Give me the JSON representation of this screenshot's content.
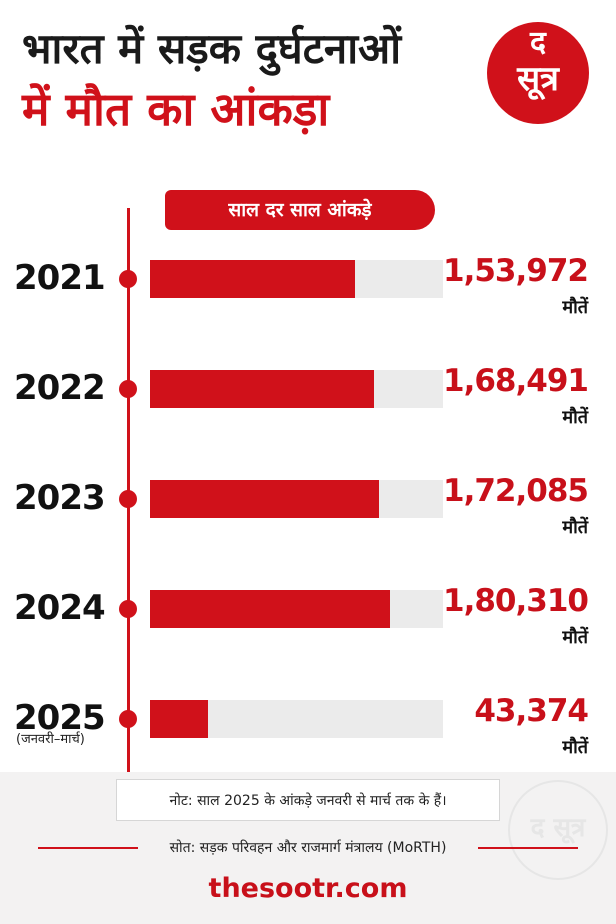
{
  "header": {
    "title_line1": "भारत में सड़क दुर्घटनाओं",
    "title_line2": "में मौत का आंकड़ा",
    "logo_line1": "द",
    "logo_line2": "सूत्र"
  },
  "subtitle": "साल दर साल आंकड़े",
  "colors": {
    "accent": "#d0111a",
    "track": "#ebebeb",
    "text": "#111111"
  },
  "chart_data": {
    "type": "bar",
    "orientation": "horizontal",
    "categories": [
      "2021",
      "2022",
      "2023",
      "2024",
      "2025"
    ],
    "values": [
      153972,
      168491,
      172085,
      180310,
      43374
    ],
    "value_labels": [
      "1,53,972",
      "1,68,491",
      "1,72,085",
      "1,80,310",
      "43,374"
    ],
    "unit_label": "मौतें",
    "category_notes": [
      "",
      "",
      "",
      "",
      "(जनवरी–मार्च)"
    ],
    "xlim": [
      0,
      220000
    ]
  },
  "footer": {
    "note": "नोट: साल 2025 के आंकड़े जनवरी से मार्च तक के हैं।",
    "source": "सोत: सड़क परिवहन और राजमार्ग मंत्रालय (MoRTH)",
    "website": "thesootr.com",
    "watermark": "द सूत्र"
  }
}
